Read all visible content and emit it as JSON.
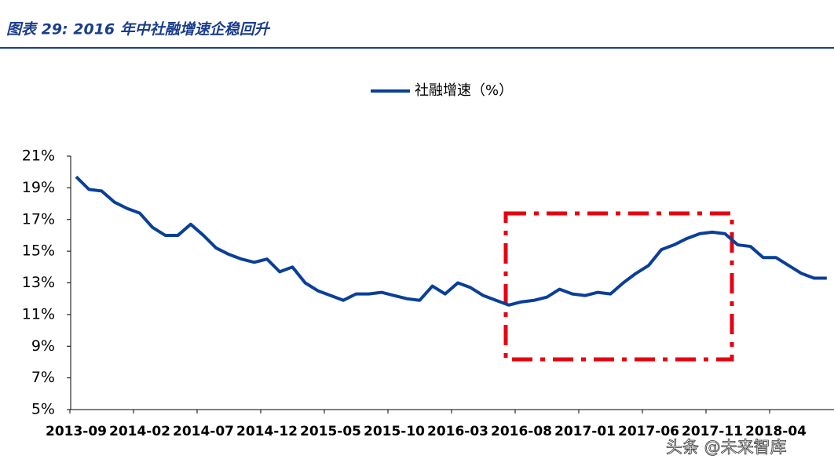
{
  "chart_data": {
    "type": "line",
    "title": "图表 29:  2016 年中社融增速企稳回升",
    "watermark": "头条 @未来智库",
    "categories": [
      "2013-09",
      null,
      null,
      null,
      null,
      "2014-02",
      null,
      null,
      null,
      null,
      "2014-07",
      null,
      null,
      null,
      null,
      "2014-12",
      null,
      null,
      null,
      null,
      "2015-05",
      null,
      null,
      null,
      null,
      "2015-10",
      null,
      null,
      null,
      null,
      "2016-03",
      null,
      null,
      null,
      null,
      "2016-08",
      null,
      null,
      null,
      null,
      "2017-01",
      null,
      null,
      null,
      null,
      "2017-06",
      null,
      null,
      null,
      null,
      "2017-11",
      null,
      null,
      null,
      null,
      "2018-04",
      null,
      null,
      null,
      null
    ],
    "series": [
      {
        "name": "社融增速（%）",
        "color": "#0a3f99",
        "values": [
          19.7,
          18.9,
          18.8,
          18.1,
          17.7,
          17.4,
          16.5,
          16.0,
          16.0,
          16.7,
          16.0,
          15.2,
          14.8,
          14.5,
          14.3,
          14.5,
          13.7,
          14.0,
          13.0,
          12.5,
          12.2,
          11.9,
          12.3,
          12.3,
          12.4,
          12.2,
          12.0,
          11.9,
          12.8,
          12.3,
          13.0,
          12.7,
          12.2,
          11.9,
          11.6,
          11.8,
          11.9,
          12.1,
          12.6,
          12.3,
          12.2,
          12.4,
          12.3,
          13.0,
          13.6,
          14.1,
          15.1,
          15.4,
          15.8,
          16.1,
          16.2,
          16.1,
          15.4,
          15.3,
          14.6,
          14.6,
          14.1,
          13.6,
          13.3,
          13.3
        ]
      }
    ],
    "ylim": [
      5,
      21
    ],
    "yticks": [
      {
        "value": 5,
        "label": "5%"
      },
      {
        "value": 7,
        "label": "7%"
      },
      {
        "value": 9,
        "label": "9%"
      },
      {
        "value": 11,
        "label": "11%"
      },
      {
        "value": 13,
        "label": "13%"
      },
      {
        "value": 15,
        "label": "15%"
      },
      {
        "value": 17,
        "label": "17%"
      },
      {
        "value": 19,
        "label": "19%"
      },
      {
        "value": 21,
        "label": "21%"
      }
    ],
    "legend": "top"
  }
}
